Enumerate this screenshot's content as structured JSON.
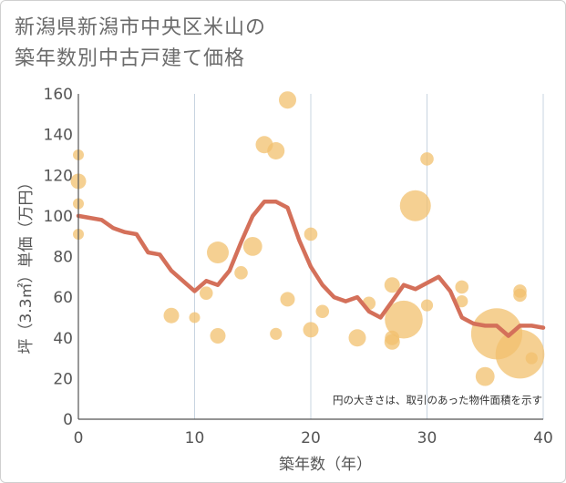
{
  "title": {
    "line1": "新潟県新潟市中央区米山の",
    "line2": "築年数別中古戸建て価格"
  },
  "colors": {
    "line": "#d4705a",
    "bubble": "#f2c06e",
    "grid": "#c8d4e0",
    "axis": "#555555"
  },
  "chart_data": {
    "type": "scatter",
    "title": "新潟県新潟市中央区米山の築年数別中古戸建て価格",
    "xlabel": "築年数（年）",
    "ylabel": "坪（3.3㎡）単価（万円）",
    "xlim": [
      0,
      40
    ],
    "ylim": [
      0,
      160
    ],
    "xticks": [
      "0",
      "10",
      "20",
      "30",
      "40"
    ],
    "yticks": [
      "0",
      "20",
      "40",
      "60",
      "80",
      "100",
      "120",
      "140",
      "160"
    ],
    "note": "円の大きさは、取引のあった物件面積を示す",
    "series": [
      {
        "name": "trend",
        "kind": "line",
        "x": [
          0,
          1,
          2,
          3,
          4,
          5,
          6,
          7,
          8,
          9,
          10,
          11,
          12,
          13,
          14,
          15,
          16,
          17,
          18,
          19,
          20,
          21,
          22,
          23,
          24,
          25,
          26,
          27,
          28,
          29,
          30,
          31,
          32,
          33,
          34,
          35,
          36,
          37,
          38,
          39,
          40
        ],
        "y": [
          100,
          99,
          98,
          94,
          92,
          91,
          82,
          81,
          73,
          68,
          63,
          68,
          66,
          73,
          87,
          100,
          107,
          107,
          104,
          88,
          75,
          66,
          60,
          58,
          60,
          53,
          50,
          58,
          66,
          64,
          67,
          70,
          63,
          50,
          47,
          46,
          46,
          41,
          46,
          46,
          45
        ]
      },
      {
        "name": "transactions",
        "kind": "bubble",
        "points": [
          {
            "x": 0,
            "y": 130,
            "size": 1
          },
          {
            "x": 0,
            "y": 117,
            "size": 2
          },
          {
            "x": 0,
            "y": 106,
            "size": 1
          },
          {
            "x": 0,
            "y": 91,
            "size": 1
          },
          {
            "x": 8,
            "y": 51,
            "size": 2
          },
          {
            "x": 10,
            "y": 50,
            "size": 1
          },
          {
            "x": 11,
            "y": 62,
            "size": 1.5
          },
          {
            "x": 12,
            "y": 82,
            "size": 4
          },
          {
            "x": 12,
            "y": 41,
            "size": 2
          },
          {
            "x": 14,
            "y": 72,
            "size": 1.5
          },
          {
            "x": 15,
            "y": 85,
            "size": 3
          },
          {
            "x": 16,
            "y": 135,
            "size": 2.5
          },
          {
            "x": 17,
            "y": 132,
            "size": 2.5
          },
          {
            "x": 17,
            "y": 42,
            "size": 1.2
          },
          {
            "x": 18,
            "y": 157,
            "size": 2.5
          },
          {
            "x": 18,
            "y": 59,
            "size": 1.8
          },
          {
            "x": 20,
            "y": 91,
            "size": 1.5
          },
          {
            "x": 20,
            "y": 44,
            "size": 2
          },
          {
            "x": 21,
            "y": 53,
            "size": 1.5
          },
          {
            "x": 24,
            "y": 40,
            "size": 2.5
          },
          {
            "x": 25,
            "y": 57,
            "size": 1.5
          },
          {
            "x": 27,
            "y": 66,
            "size": 2
          },
          {
            "x": 27,
            "y": 40,
            "size": 1.8
          },
          {
            "x": 27,
            "y": 38,
            "size": 2
          },
          {
            "x": 28,
            "y": 49,
            "size": 12
          },
          {
            "x": 29,
            "y": 105,
            "size": 8
          },
          {
            "x": 30,
            "y": 128,
            "size": 1.5
          },
          {
            "x": 30,
            "y": 56,
            "size": 1.2
          },
          {
            "x": 33,
            "y": 65,
            "size": 1.5
          },
          {
            "x": 33,
            "y": 58,
            "size": 1.2
          },
          {
            "x": 35,
            "y": 21,
            "size": 3
          },
          {
            "x": 36,
            "y": 42,
            "size": 22
          },
          {
            "x": 38,
            "y": 63,
            "size": 1.5
          },
          {
            "x": 38,
            "y": 61,
            "size": 1.5
          },
          {
            "x": 38,
            "y": 32,
            "size": 20
          },
          {
            "x": 39,
            "y": 30,
            "size": 1.2
          }
        ]
      }
    ]
  }
}
